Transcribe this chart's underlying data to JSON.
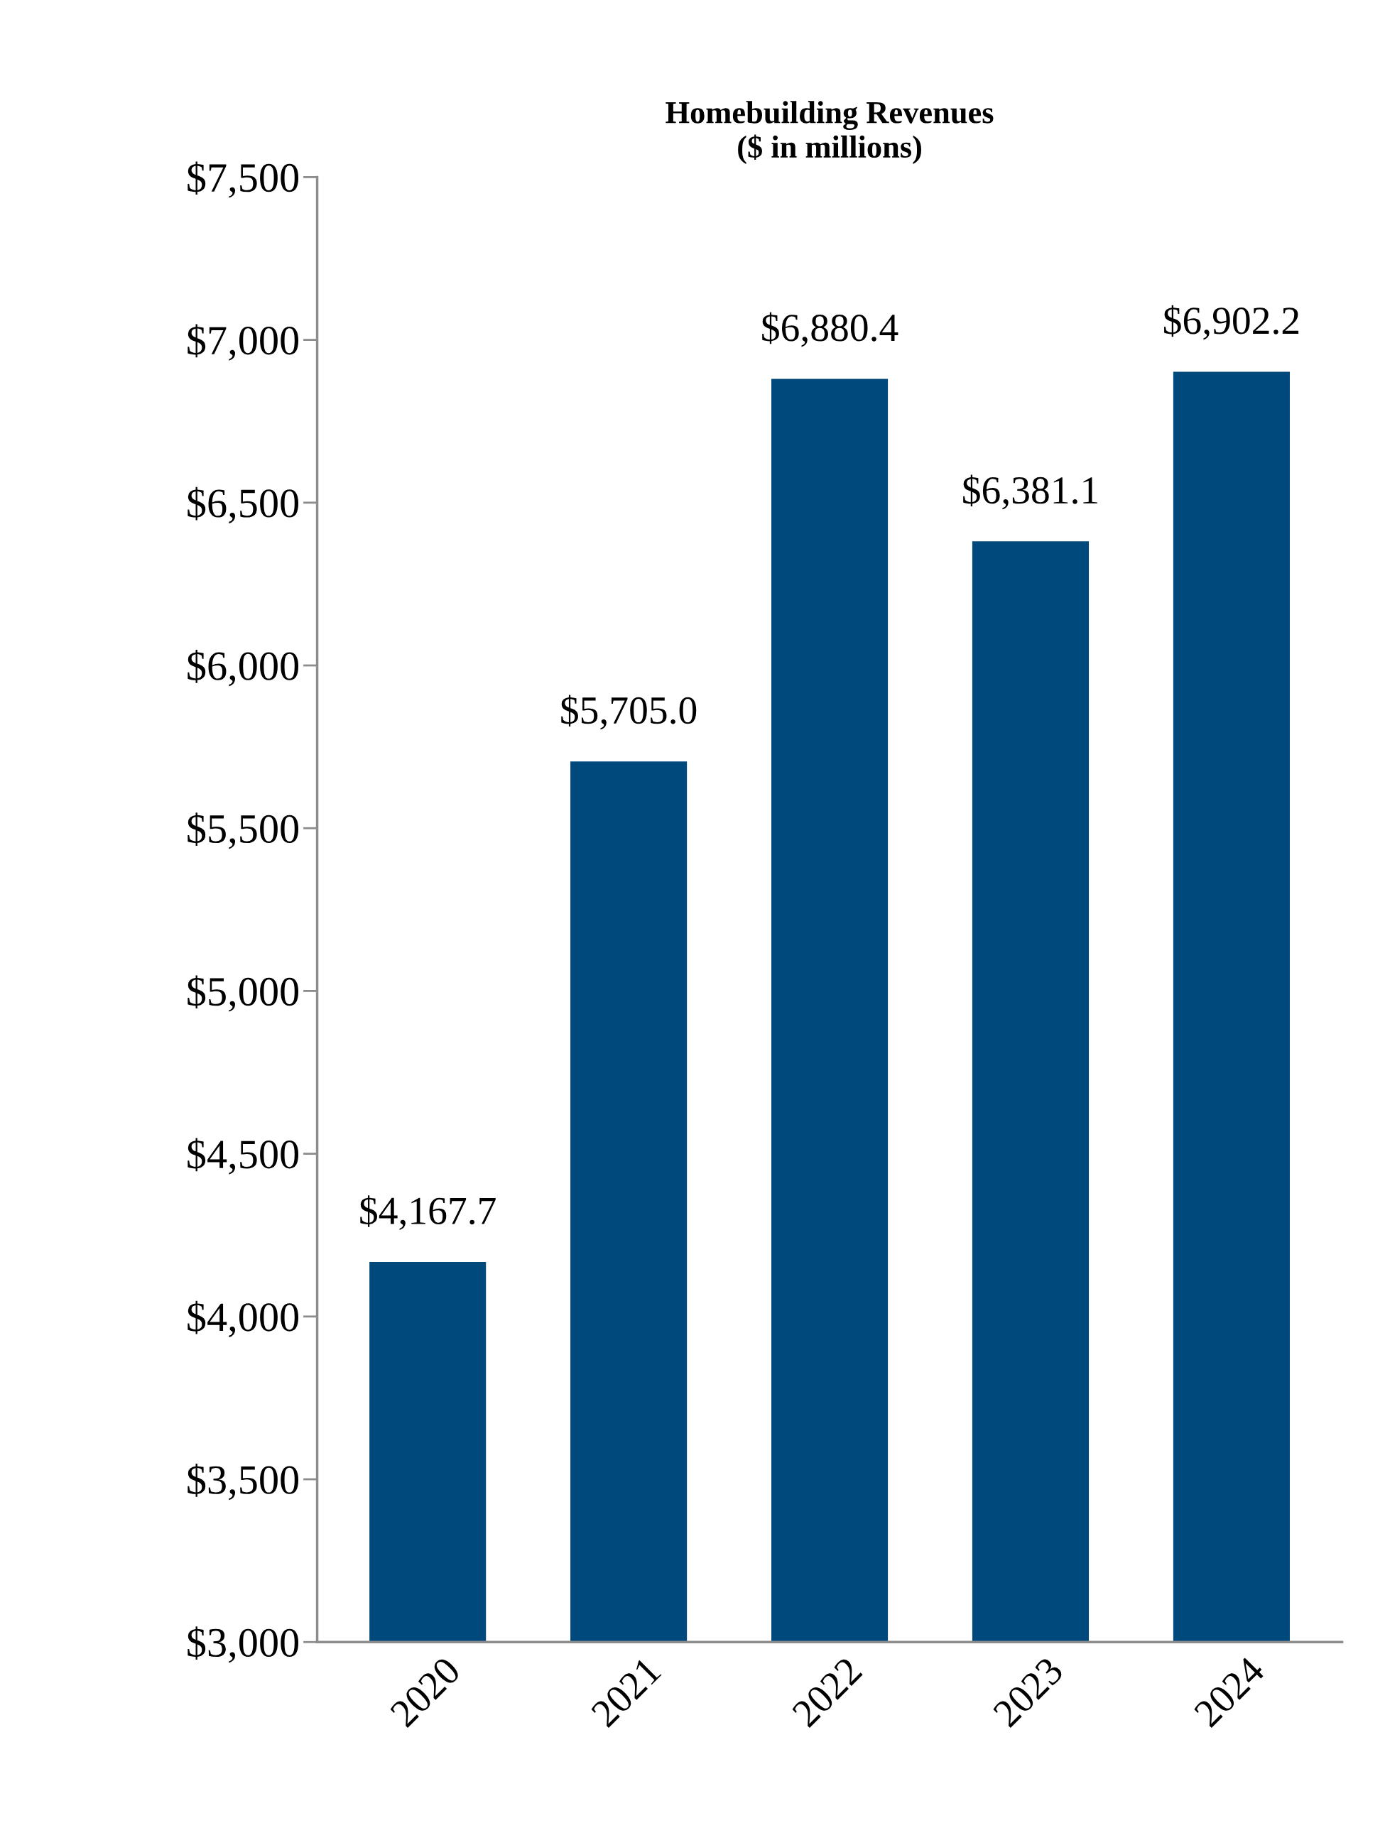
{
  "chart_data": {
    "type": "bar",
    "title": "Homebuilding Revenues\n($ in millions)",
    "categories": [
      "2020",
      "2021",
      "2022",
      "2023",
      "2024"
    ],
    "values": [
      4167.7,
      5705.0,
      6880.4,
      6381.1,
      6902.2
    ],
    "value_labels": [
      "$4,167.7",
      "$5,705.0",
      "$6,880.4",
      "$6,381.1",
      "$6,902.2"
    ],
    "color": "#00497c",
    "ylim": [
      3000,
      7500
    ],
    "yticks": [
      {
        "value": 3000,
        "label": "$3,000"
      },
      {
        "value": 3500,
        "label": "$3,500"
      },
      {
        "value": 4000,
        "label": "$4,000"
      },
      {
        "value": 4500,
        "label": "$4,500"
      },
      {
        "value": 5000,
        "label": "$5,000"
      },
      {
        "value": 5500,
        "label": "$5,500"
      },
      {
        "value": 6000,
        "label": "$6,000"
      },
      {
        "value": 6500,
        "label": "$6,500"
      },
      {
        "value": 7000,
        "label": "$7,000"
      },
      {
        "value": 7500,
        "label": "$7,500"
      }
    ],
    "grid": false,
    "legend": false
  }
}
